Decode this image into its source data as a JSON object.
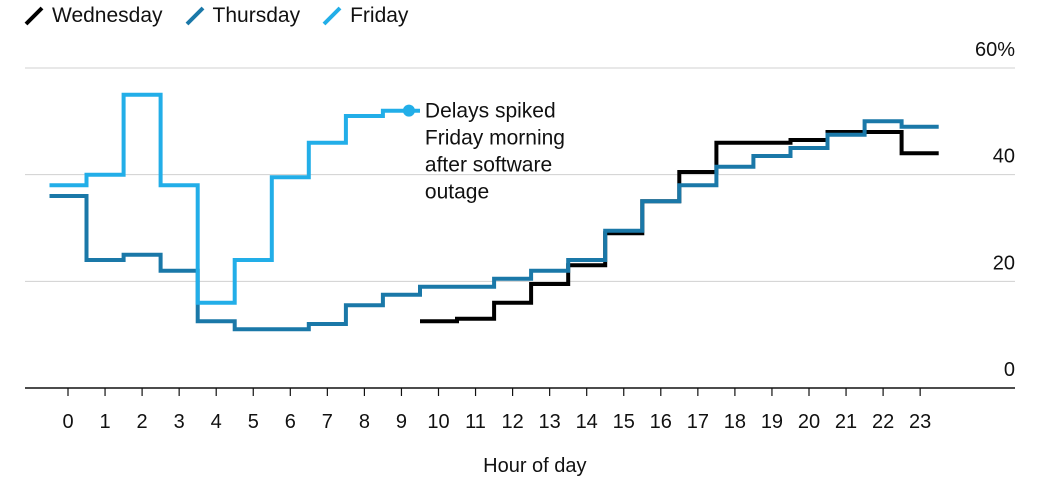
{
  "legend": [
    {
      "name": "Wednesday",
      "color": "#000000"
    },
    {
      "name": "Thursday",
      "color": "#1a78a8"
    },
    {
      "name": "Friday",
      "color": "#22aee8"
    }
  ],
  "annotation": {
    "lines": [
      "Delays spiked",
      "Friday morning",
      "after software",
      "outage"
    ]
  },
  "chart_data": {
    "type": "line",
    "step": true,
    "title": "",
    "xlabel": "Hour of day",
    "ylabel": "",
    "x_ticks": [
      0,
      1,
      2,
      3,
      4,
      5,
      6,
      7,
      8,
      9,
      10,
      11,
      12,
      13,
      14,
      15,
      16,
      17,
      18,
      19,
      20,
      21,
      22,
      23
    ],
    "y_ticks": [
      0,
      20,
      40,
      60
    ],
    "y_tick_labels": [
      "0",
      "20",
      "40",
      "60%"
    ],
    "ylim": [
      0,
      60
    ],
    "xlim": [
      -1,
      24.5
    ],
    "grid": true,
    "legend_position": "top-left",
    "series": [
      {
        "name": "Wednesday",
        "color": "#000000",
        "x": [
          10,
          11,
          12,
          13,
          14,
          15,
          16,
          17,
          18,
          19,
          20,
          21,
          22,
          23
        ],
        "y": [
          12.5,
          13,
          16,
          19.5,
          23,
          29,
          35,
          40.5,
          46,
          46,
          46.5,
          48,
          48,
          44
        ]
      },
      {
        "name": "Thursday",
        "color": "#1a78a8",
        "x": [
          0,
          1,
          2,
          3,
          4,
          5,
          6,
          7,
          8,
          9,
          10,
          11,
          12,
          13,
          14,
          15,
          16,
          17,
          18,
          19,
          20,
          21,
          22,
          23
        ],
        "y": [
          36,
          24,
          25,
          22,
          12.5,
          11,
          11,
          12,
          15.5,
          17.5,
          19,
          19,
          20.5,
          22,
          24,
          29.5,
          35,
          38,
          41.5,
          43.5,
          45,
          47.5,
          50,
          49
        ]
      },
      {
        "name": "Friday",
        "color": "#22aee8",
        "x": [
          0,
          1,
          2,
          3,
          4,
          5,
          6,
          7,
          8,
          9
        ],
        "y": [
          38,
          40,
          55,
          38,
          16,
          24,
          39.5,
          46,
          51,
          52
        ]
      }
    ]
  }
}
